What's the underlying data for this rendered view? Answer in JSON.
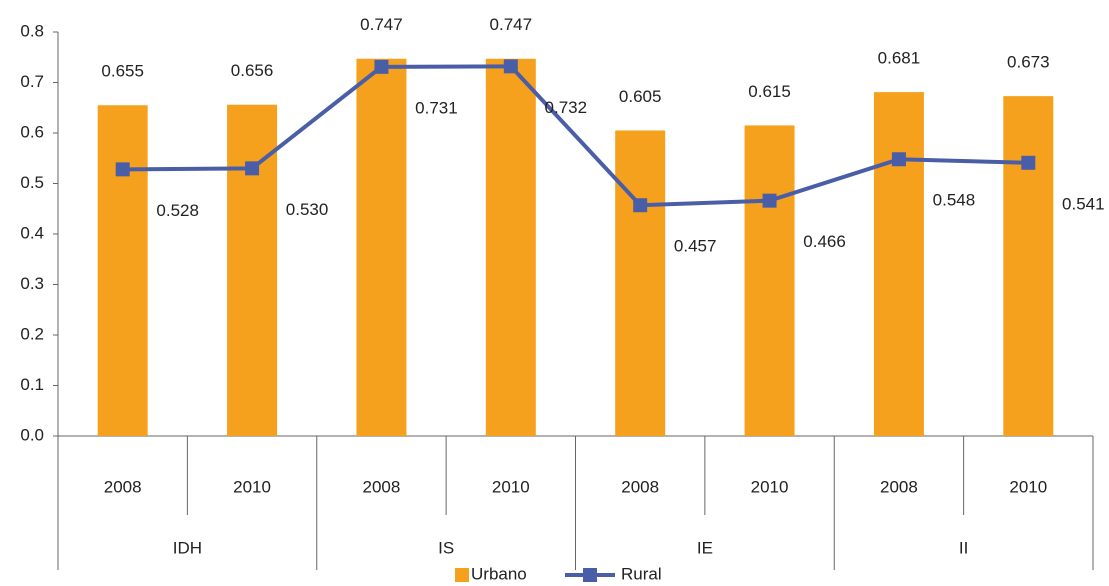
{
  "chart_data": {
    "type": "combo",
    "categories": [
      "2008",
      "2010",
      "2008",
      "2010",
      "2008",
      "2010",
      "2008",
      "2010"
    ],
    "groups": [
      "IDH",
      "IS",
      "IE",
      "II"
    ],
    "series": [
      {
        "name": "Urbano",
        "type": "bar",
        "color": "#f5a11e",
        "values": [
          0.655,
          0.656,
          0.747,
          0.747,
          0.605,
          0.615,
          0.681,
          0.673
        ]
      },
      {
        "name": "Rural",
        "type": "line",
        "color": "#4a5ea8",
        "values": [
          0.528,
          0.53,
          0.731,
          0.732,
          0.457,
          0.466,
          0.548,
          0.541
        ],
        "value_labels": [
          "0.528",
          "0.530",
          "0.731",
          "0.732",
          "0.457",
          "0.466",
          "0.548",
          "0.541"
        ]
      }
    ],
    "ylim": [
      0,
      0.8
    ],
    "yticks": [
      {
        "value": 0,
        "label": "0.0"
      },
      0.1,
      0.2,
      0.3,
      0.4,
      0.5,
      0.6,
      0.7,
      0.8
    ],
    "legend": "bottom"
  }
}
